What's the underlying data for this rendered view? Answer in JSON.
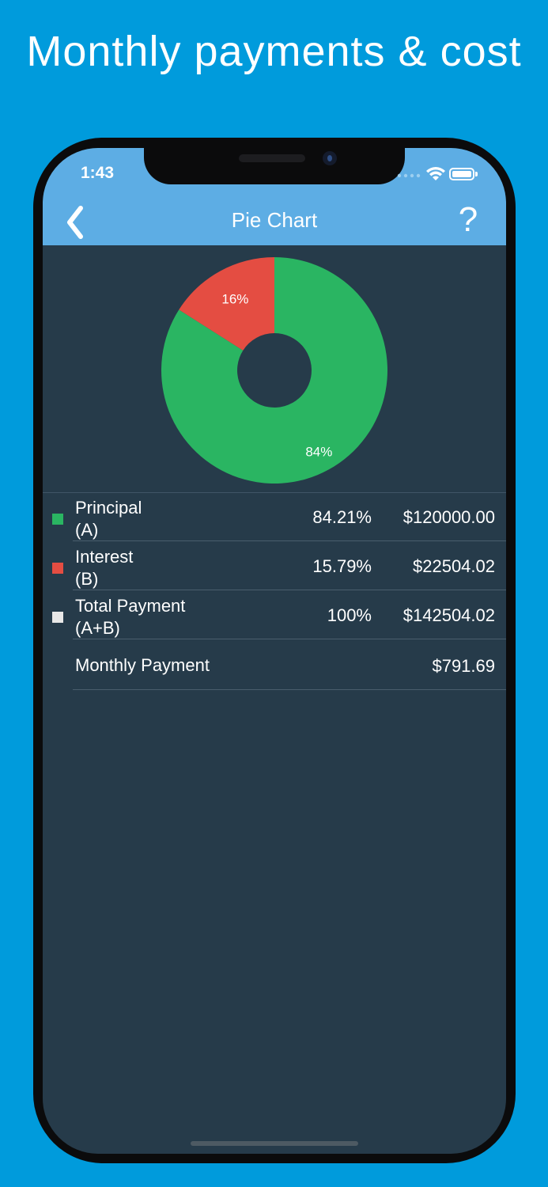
{
  "promo": {
    "title": "Monthly payments & cost"
  },
  "status_bar": {
    "time": "1:43"
  },
  "nav": {
    "back_icon": "chevron-left-icon",
    "title": "Pie Chart",
    "help_label": "?"
  },
  "chart_data": {
    "type": "pie",
    "title": "",
    "donut": true,
    "categories": [
      "Principal",
      "Interest"
    ],
    "values": [
      84,
      16
    ],
    "data_labels": [
      "84%",
      "16%"
    ],
    "colors": [
      "#2ab562",
      "#e44d42"
    ]
  },
  "summary": {
    "rows": [
      {
        "label_line1": "Principal",
        "label_line2": "(A)",
        "percent": "84.21%",
        "amount": "$120000.00",
        "color": "#2ab562"
      },
      {
        "label_line1": "Interest",
        "label_line2": "(B)",
        "percent": "15.79%",
        "amount": "$22504.02",
        "color": "#e44d42"
      },
      {
        "label_line1": "Total Payment",
        "label_line2": "(A+B)",
        "percent": "100%",
        "amount": "$142504.02",
        "color": "#e8e8e8"
      }
    ],
    "monthly": {
      "label": "Monthly Payment",
      "amount": "$791.69"
    }
  },
  "colors": {
    "background": "#009bdc",
    "nav_bar": "#5dade4",
    "screen_bg": "#263b4a"
  }
}
